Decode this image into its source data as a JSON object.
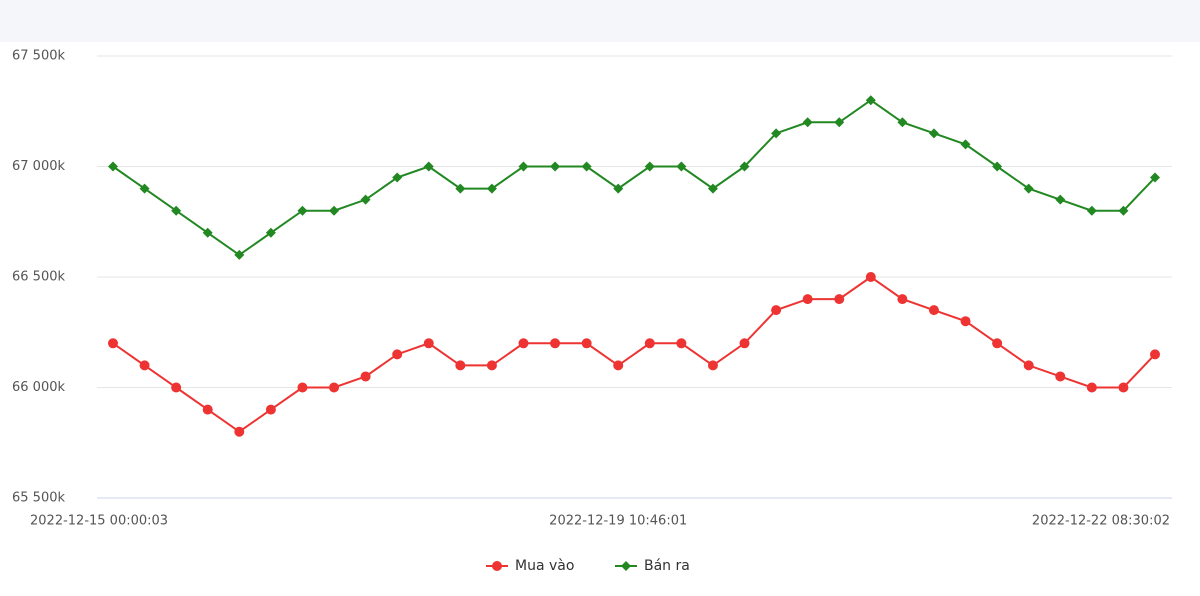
{
  "chart_data": {
    "type": "line",
    "categories": [
      "2022-12-15 00:00:03",
      null,
      null,
      null,
      null,
      null,
      null,
      null,
      null,
      null,
      null,
      null,
      null,
      null,
      null,
      null,
      "2022-12-19 10:46:01",
      null,
      null,
      null,
      null,
      null,
      null,
      null,
      null,
      null,
      null,
      null,
      null,
      null,
      null,
      null,
      null,
      "2022-12-22 08:30:02"
    ],
    "series": [
      {
        "name": "Mua vào",
        "color": "#ee3333",
        "marker": "circle",
        "values": [
          66200,
          66100,
          66000,
          65900,
          65800,
          65900,
          66000,
          66000,
          66050,
          66150,
          66200,
          66100,
          66100,
          66200,
          66200,
          66200,
          66100,
          66200,
          66200,
          66100,
          66200,
          66350,
          66400,
          66400,
          66500,
          66400,
          66350,
          66300,
          66200,
          66100,
          66050,
          66000,
          66000,
          66150
        ]
      },
      {
        "name": "Bán ra",
        "color": "#228822",
        "marker": "diamond",
        "values": [
          67000,
          66900,
          66800,
          66700,
          66600,
          66700,
          66800,
          66800,
          66850,
          66950,
          67000,
          66900,
          66900,
          67000,
          67000,
          67000,
          66900,
          67000,
          67000,
          66900,
          67000,
          67150,
          67200,
          67200,
          67300,
          67200,
          67150,
          67100,
          67000,
          66900,
          66850,
          66800,
          66800,
          66950
        ]
      }
    ],
    "ylim": [
      65500,
      67500
    ],
    "yticks": [
      {
        "value": 65500,
        "label": "65 500k"
      },
      {
        "value": 66000,
        "label": "66 000k"
      },
      {
        "value": 66500,
        "label": "66 500k"
      },
      {
        "value": 67000,
        "label": "67 000k"
      },
      {
        "value": 67500,
        "label": "67 500k"
      }
    ],
    "grid": true,
    "legend": "bottom"
  }
}
